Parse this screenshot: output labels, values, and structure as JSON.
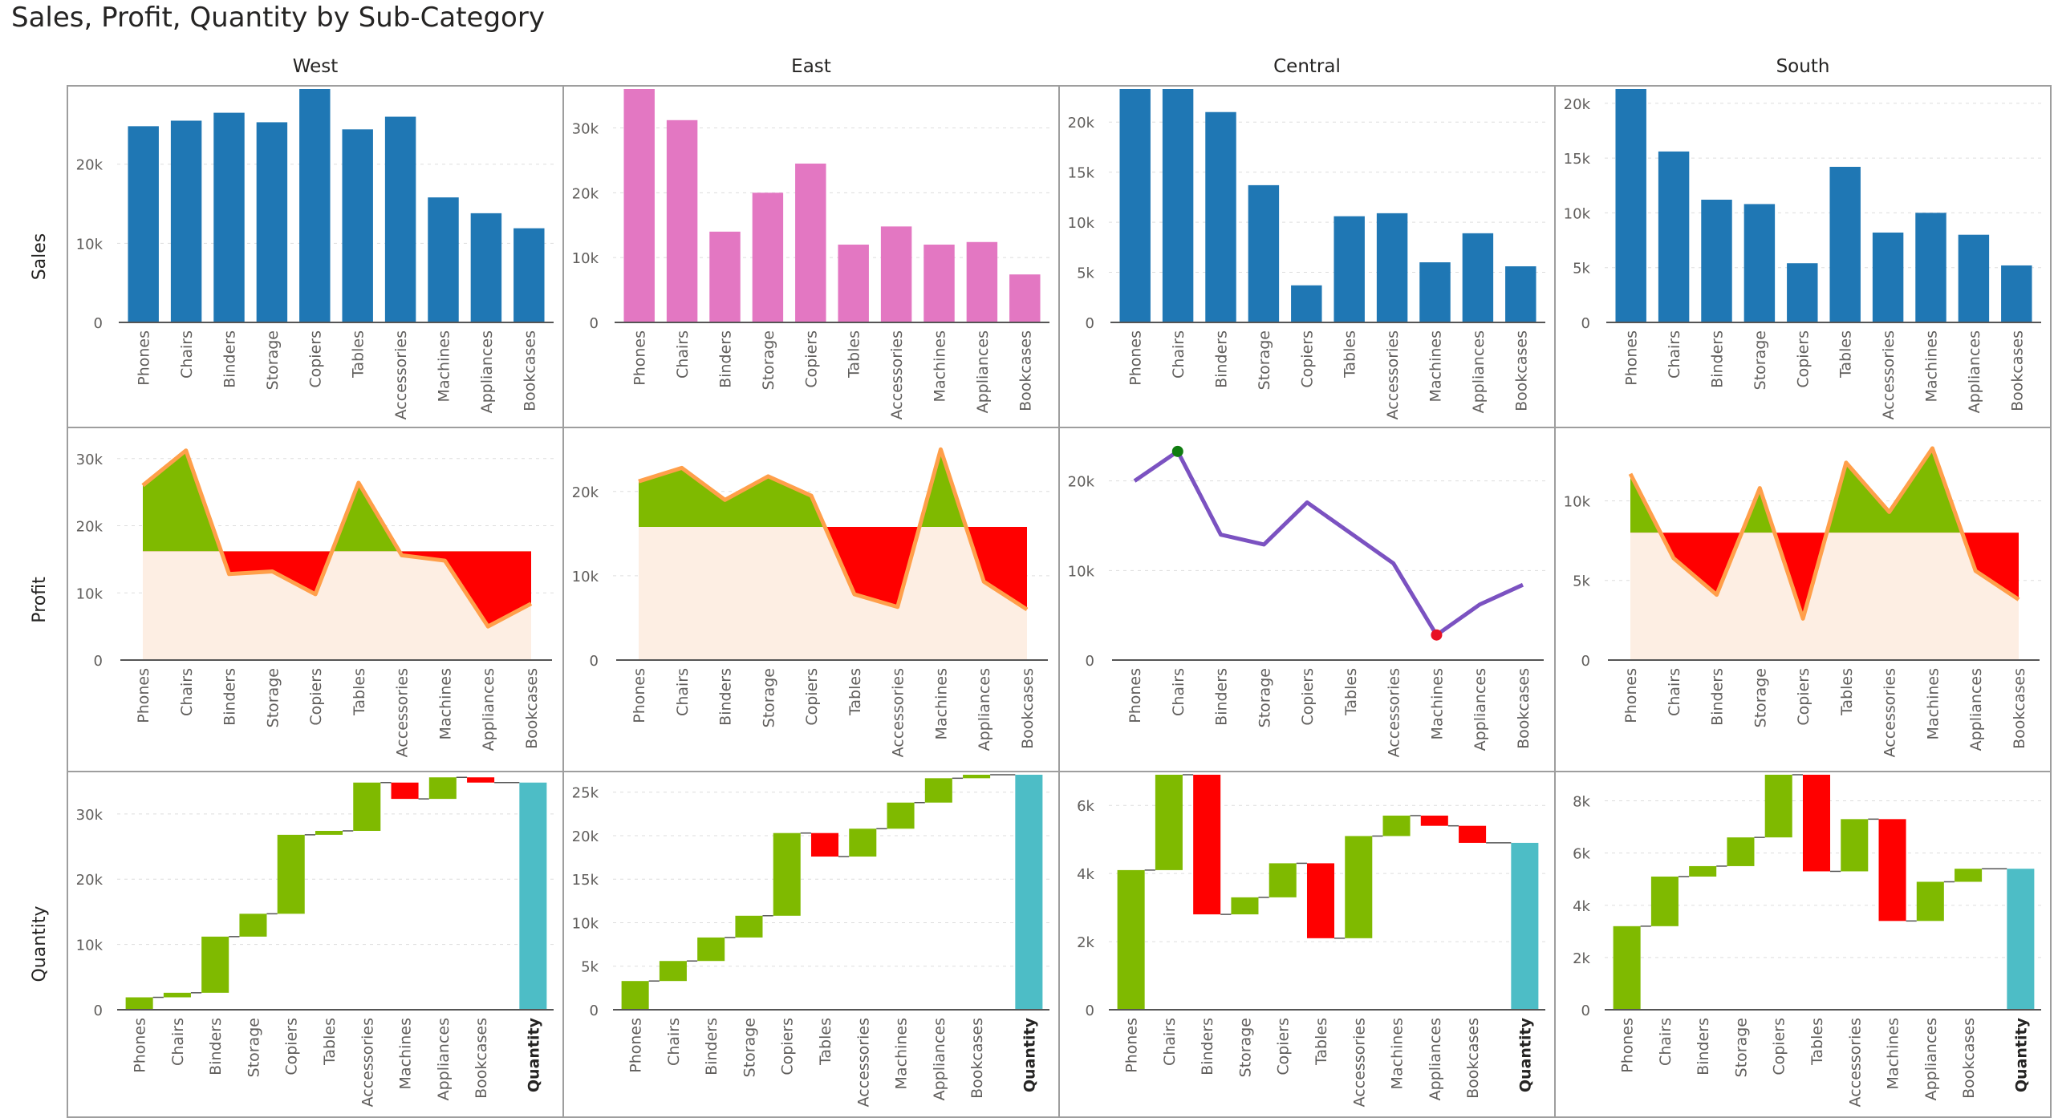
{
  "title": "Sales, Profit, Quantity by Sub-Category",
  "colors": {
    "sales": "#1f77b4",
    "sales_highlight": "#e377c2",
    "positive": "#7fba00",
    "negative": "#ff0000",
    "line": "#ff9f4a",
    "baseline_fill": "#fdeee3",
    "central_line": "#7b52c1",
    "max_marker": "#107c10",
    "min_marker": "#e81123",
    "total": "#4dbdc6",
    "frame": "#9e9e9e",
    "grid": "#dddddd"
  },
  "chart_data": {
    "type": "small-multiples",
    "title": "Sales, Profit, Quantity by Sub-Category",
    "categories": [
      "Phones",
      "Chairs",
      "Binders",
      "Storage",
      "Copiers",
      "Tables",
      "Accessories",
      "Machines",
      "Appliances",
      "Bookcases"
    ],
    "columns": [
      "West",
      "East",
      "Central",
      "South"
    ],
    "rows": [
      "Sales",
      "Profit",
      "Quantity"
    ],
    "total_label": "Quantity",
    "axis_ticks": {
      "Sales": {
        "West": {
          "ylim": [
            0,
            29500
          ],
          "ticks": [
            0,
            10000,
            20000
          ],
          "labels": [
            "0",
            "10k",
            "20k"
          ]
        },
        "East": {
          "ylim": [
            0,
            36000
          ],
          "ticks": [
            0,
            10000,
            20000,
            30000
          ],
          "labels": [
            "0",
            "10k",
            "20k",
            "30k"
          ]
        },
        "Central": {
          "ylim": [
            0,
            23300
          ],
          "ticks": [
            0,
            5000,
            10000,
            15000,
            20000
          ],
          "labels": [
            "0",
            "5k",
            "10k",
            "15k",
            "20k"
          ]
        },
        "South": {
          "ylim": [
            0,
            21300
          ],
          "ticks": [
            0,
            5000,
            10000,
            15000,
            20000
          ],
          "labels": [
            "0",
            "5k",
            "10k",
            "15k",
            "20k"
          ]
        }
      },
      "Profit": {
        "West": {
          "ylim": [
            0,
            32000
          ],
          "ticks": [
            0,
            10000,
            20000,
            30000
          ],
          "labels": [
            "0",
            "10k",
            "20k",
            "30k"
          ]
        },
        "East": {
          "ylim": [
            0,
            25500
          ],
          "ticks": [
            0,
            10000,
            20000
          ],
          "labels": [
            "0",
            "10k",
            "20k"
          ]
        },
        "Central": {
          "ylim": [
            0,
            24000
          ],
          "ticks": [
            0,
            10000,
            20000
          ],
          "labels": [
            "0",
            "10k",
            "20k"
          ]
        },
        "South": {
          "ylim": [
            0,
            13500
          ],
          "ticks": [
            0,
            5000,
            10000
          ],
          "labels": [
            "0",
            "5k",
            "10k"
          ]
        }
      },
      "Quantity": {
        "West": {
          "ylim": [
            0,
            36000
          ],
          "ticks": [
            0,
            10000,
            20000,
            30000
          ],
          "labels": [
            "0",
            "10k",
            "20k",
            "30k"
          ]
        },
        "East": {
          "ylim": [
            0,
            27000
          ],
          "ticks": [
            0,
            5000,
            10000,
            15000,
            20000,
            25000
          ],
          "labels": [
            "0",
            "5k",
            "10k",
            "15k",
            "20k",
            "25k"
          ]
        },
        "Central": {
          "ylim": [
            0,
            6900
          ],
          "ticks": [
            0,
            2000,
            4000,
            6000
          ],
          "labels": [
            "0",
            "2k",
            "4k",
            "6k"
          ]
        },
        "South": {
          "ylim": [
            0,
            9000
          ],
          "ticks": [
            0,
            2000,
            4000,
            6000,
            8000
          ],
          "labels": [
            "0",
            "2k",
            "4k",
            "6k",
            "8k"
          ]
        }
      }
    },
    "sales": {
      "West": [
        24800,
        25500,
        26500,
        25300,
        29500,
        24400,
        26000,
        15800,
        13800,
        11900
      ],
      "East": [
        36000,
        31200,
        14000,
        20000,
        24500,
        12000,
        14800,
        12000,
        12400,
        7400
      ],
      "Central": [
        23300,
        23300,
        21000,
        13700,
        3700,
        10600,
        10900,
        6000,
        8900,
        5600
      ],
      "South": [
        21300,
        15600,
        11200,
        10800,
        5400,
        14200,
        8200,
        10000,
        8000,
        5200
      ]
    },
    "profit": {
      "West": {
        "chart": "area-vs-baseline",
        "baseline": 16200,
        "values": [
          26000,
          31200,
          12800,
          13200,
          9800,
          26400,
          15600,
          14800,
          5000,
          8400
        ]
      },
      "East": {
        "chart": "area-vs-baseline",
        "baseline": 15800,
        "values": [
          21200,
          22800,
          19000,
          21800,
          19500,
          7800,
          6300,
          25000,
          9300,
          6000
        ]
      },
      "Central": {
        "chart": "line",
        "values": [
          20000,
          23300,
          14000,
          12900,
          17600,
          14200,
          10800,
          2800,
          6200,
          8400
        ],
        "max_index": 1,
        "min_index": 7
      },
      "South": {
        "chart": "area-vs-baseline",
        "baseline": 8000,
        "values": [
          11700,
          6400,
          4100,
          10800,
          2600,
          12400,
          9300,
          13300,
          5600,
          3800
        ]
      }
    },
    "quantity_waterfall": {
      "West": {
        "cumulative": [
          0,
          1900,
          2600,
          11200,
          14700,
          26800,
          27400,
          34800,
          32300,
          35600,
          34800
        ],
        "total": 34800
      },
      "East": {
        "cumulative": [
          0,
          3300,
          5600,
          8300,
          10800,
          20300,
          17600,
          20800,
          23800,
          26600,
          27000
        ],
        "total": 27000
      },
      "Central": {
        "cumulative": [
          0,
          4100,
          6900,
          2800,
          3300,
          4300,
          2100,
          5100,
          5700,
          5400,
          4900
        ],
        "total": 4900
      },
      "South": {
        "cumulative": [
          0,
          3200,
          5100,
          5500,
          6600,
          9000,
          5300,
          7300,
          3400,
          4900,
          5400
        ],
        "total": 5400
      }
    }
  }
}
